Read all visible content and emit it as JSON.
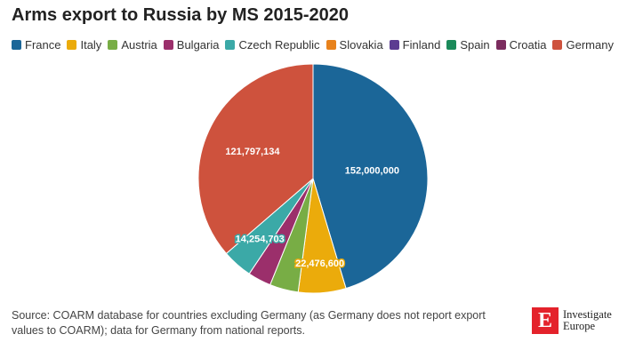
{
  "title": "Arms export to Russia by MS 2015-2020",
  "source": "Source: COARM database for countries excluding Germany (as Germany does not report export values to COARM); data for Germany from national reports.",
  "logo": {
    "mark": "E",
    "line1": "Investigate",
    "line2": "Europe"
  },
  "chart_data": {
    "type": "pie",
    "title": "Arms export to Russia by MS 2015-2020",
    "legend_position": "top",
    "categories": [
      "France",
      "Italy",
      "Austria",
      "Bulgaria",
      "Czech Republic",
      "Slovakia",
      "Finland",
      "Spain",
      "Croatia",
      "Germany"
    ],
    "values": [
      152000000,
      22476600,
      13500000,
      11000000,
      14254703,
      0,
      0,
      0,
      0,
      121797134
    ],
    "colors": [
      "#1b6698",
      "#ebab0b",
      "#78ad45",
      "#9b2f6b",
      "#3ba9a7",
      "#e8821c",
      "#5c3c91",
      "#1b8a5a",
      "#7b2c5e",
      "#ce523d"
    ],
    "data_labels": [
      {
        "category": "France",
        "text": "152,000,000"
      },
      {
        "category": "Italy",
        "text": "22,476,600"
      },
      {
        "category": "Czech Republic",
        "text": "14,254,703"
      },
      {
        "category": "Germany",
        "text": "121,797,134"
      }
    ]
  }
}
